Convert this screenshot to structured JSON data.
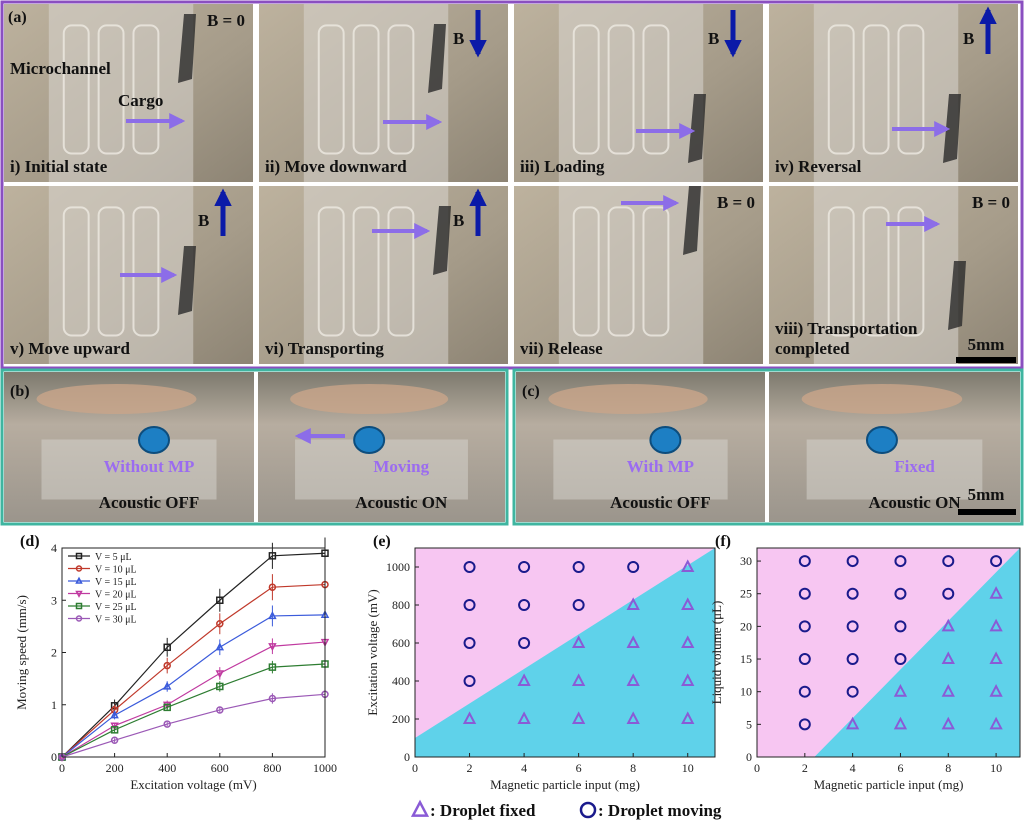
{
  "panel_a": {
    "label": "(a)",
    "annotations": [
      "Microchannel",
      "Cargo"
    ],
    "scale_bar": "5mm",
    "photos": [
      {
        "caption": [
          "i) Initial state"
        ],
        "field": "B = 0"
      },
      {
        "caption": [
          "ii) Move downward"
        ],
        "field": "B",
        "field_arrow": "down"
      },
      {
        "caption": [
          "iii) Loading"
        ],
        "field": "B",
        "field_arrow": "down"
      },
      {
        "caption": [
          "iv) Reversal"
        ],
        "field": "B",
        "field_arrow": "up"
      },
      {
        "caption": [
          "v) Move upward"
        ],
        "field": "B",
        "field_arrow": "up"
      },
      {
        "caption": [
          "vi) Transporting"
        ],
        "field": "B",
        "field_arrow": "up"
      },
      {
        "caption": [
          "vii) Release"
        ],
        "field": "B = 0"
      },
      {
        "caption": [
          "viii) Transportation",
          "completed"
        ],
        "field": "B = 0"
      }
    ]
  },
  "panel_b": {
    "label": "(b)",
    "photos": [
      {
        "state": "Without MP",
        "acoustic": "Acoustic OFF"
      },
      {
        "state": "Moving",
        "acoustic": "Acoustic ON"
      }
    ]
  },
  "panel_c": {
    "label": "(c)",
    "scale_bar": "5mm",
    "photos": [
      {
        "state": "With MP",
        "acoustic": "Acoustic OFF"
      },
      {
        "state": "Fixed",
        "acoustic": "Acoustic ON"
      }
    ]
  },
  "chart_data": [
    {
      "type": "line",
      "label": "(d)",
      "x_label": "Excitation voltage (mV)",
      "y_label": "Moving speed (mm/s)",
      "x": [
        0,
        200,
        400,
        600,
        800,
        1000
      ],
      "xlim": [
        0,
        1000
      ],
      "xticks": [
        0,
        200,
        400,
        600,
        800,
        1000
      ],
      "ylim": [
        0,
        4
      ],
      "yticks": [
        0,
        1,
        2,
        3,
        4
      ],
      "legend": "upper left",
      "series": [
        {
          "name": "V =  5 μL",
          "color": "#222222",
          "marker": "square",
          "values": [
            0,
            0.98,
            2.1,
            3.0,
            3.85,
            3.9
          ],
          "errors": [
            0,
            0.12,
            0.18,
            0.22,
            0.25,
            0.3
          ]
        },
        {
          "name": "V = 10 μL",
          "color": "#c0392b",
          "marker": "circle",
          "values": [
            0,
            0.9,
            1.75,
            2.55,
            3.25,
            3.3
          ],
          "errors": [
            0,
            0.1,
            0.15,
            0.2,
            0.25,
            0.3
          ]
        },
        {
          "name": "V = 15 μL",
          "color": "#3b5bdb",
          "marker": "triangle",
          "values": [
            0,
            0.8,
            1.35,
            2.1,
            2.7,
            2.72
          ],
          "errors": [
            0,
            0.08,
            0.1,
            0.15,
            0.2,
            0.3
          ]
        },
        {
          "name": "V = 20 μL",
          "color": "#c03aa0",
          "marker": "down-triangle",
          "values": [
            0,
            0.6,
            1.0,
            1.6,
            2.12,
            2.2
          ],
          "errors": [
            0,
            0.06,
            0.08,
            0.12,
            0.15,
            0.3
          ]
        },
        {
          "name": "V = 25 μL",
          "color": "#2e7d32",
          "marker": "square",
          "values": [
            0,
            0.52,
            0.95,
            1.35,
            1.72,
            1.78
          ],
          "errors": [
            0,
            0.05,
            0.07,
            0.1,
            0.12,
            0.25
          ]
        },
        {
          "name": "V = 30 μL",
          "color": "#9b59b6",
          "marker": "circle",
          "values": [
            0,
            0.32,
            0.63,
            0.9,
            1.12,
            1.2
          ],
          "errors": [
            0,
            0.04,
            0.04,
            0.06,
            0.1,
            0.15
          ]
        }
      ]
    },
    {
      "type": "scatter",
      "label": "(e)",
      "x_label": "Magnetic particle input (mg)",
      "y_label": "Excitation voltage (mV)",
      "xlim": [
        0,
        11
      ],
      "xticks": [
        0,
        2,
        4,
        6,
        8,
        10
      ],
      "ylim": [
        0,
        1100
      ],
      "yticks": [
        0,
        200,
        400,
        600,
        800,
        1000
      ],
      "boundary": {
        "x": [
          0,
          11
        ],
        "y": [
          100,
          1100
        ]
      },
      "region_colors": [
        "#f7c6f2",
        "#5fd2ea"
      ],
      "series": [
        {
          "name": ": Droplet fixed",
          "color": "#8a5bd6",
          "marker": "triangle",
          "x": [
            10,
            8,
            10,
            6,
            8,
            10,
            4,
            6,
            8,
            10,
            2,
            4,
            6,
            8,
            10
          ],
          "values": [
            1000,
            800,
            800,
            600,
            600,
            600,
            400,
            400,
            400,
            400,
            200,
            200,
            200,
            200,
            200
          ]
        },
        {
          "name": ": Droplet moving",
          "color": "#1a1a8c",
          "marker": "circle",
          "x": [
            2,
            4,
            6,
            8,
            2,
            4,
            6,
            2,
            4,
            2
          ],
          "values": [
            1000,
            1000,
            1000,
            1000,
            800,
            800,
            800,
            600,
            600,
            400
          ]
        }
      ]
    },
    {
      "type": "scatter",
      "label": "(f)",
      "x_label": "Magnetic particle input (mg)",
      "y_label": "Liquid volume (μL)",
      "xlim": [
        0,
        11
      ],
      "xticks": [
        0,
        2,
        4,
        6,
        8,
        10
      ],
      "ylim": [
        0,
        32
      ],
      "yticks": [
        0,
        5,
        10,
        15,
        20,
        25,
        30
      ],
      "boundary": {
        "x": [
          2.4,
          11
        ],
        "y": [
          0,
          32
        ]
      },
      "region_colors": [
        "#f7c6f2",
        "#5fd2ea"
      ],
      "series": [
        {
          "name": ": Droplet fixed",
          "color": "#8a5bd6",
          "marker": "triangle",
          "x": [
            10,
            8,
            10,
            8,
            10,
            6,
            8,
            10,
            4,
            6,
            8,
            10
          ],
          "values": [
            25,
            20,
            20,
            15,
            15,
            10,
            10,
            10,
            5,
            5,
            5,
            5
          ]
        },
        {
          "name": ": Droplet moving",
          "color": "#1a1a8c",
          "marker": "circle",
          "x": [
            2,
            4,
            6,
            8,
            10,
            2,
            4,
            6,
            8,
            2,
            4,
            6,
            2,
            4,
            6,
            2,
            4,
            2
          ],
          "values": [
            30,
            30,
            30,
            30,
            30,
            25,
            25,
            25,
            25,
            20,
            20,
            20,
            15,
            15,
            15,
            10,
            10,
            5
          ]
        }
      ]
    }
  ]
}
